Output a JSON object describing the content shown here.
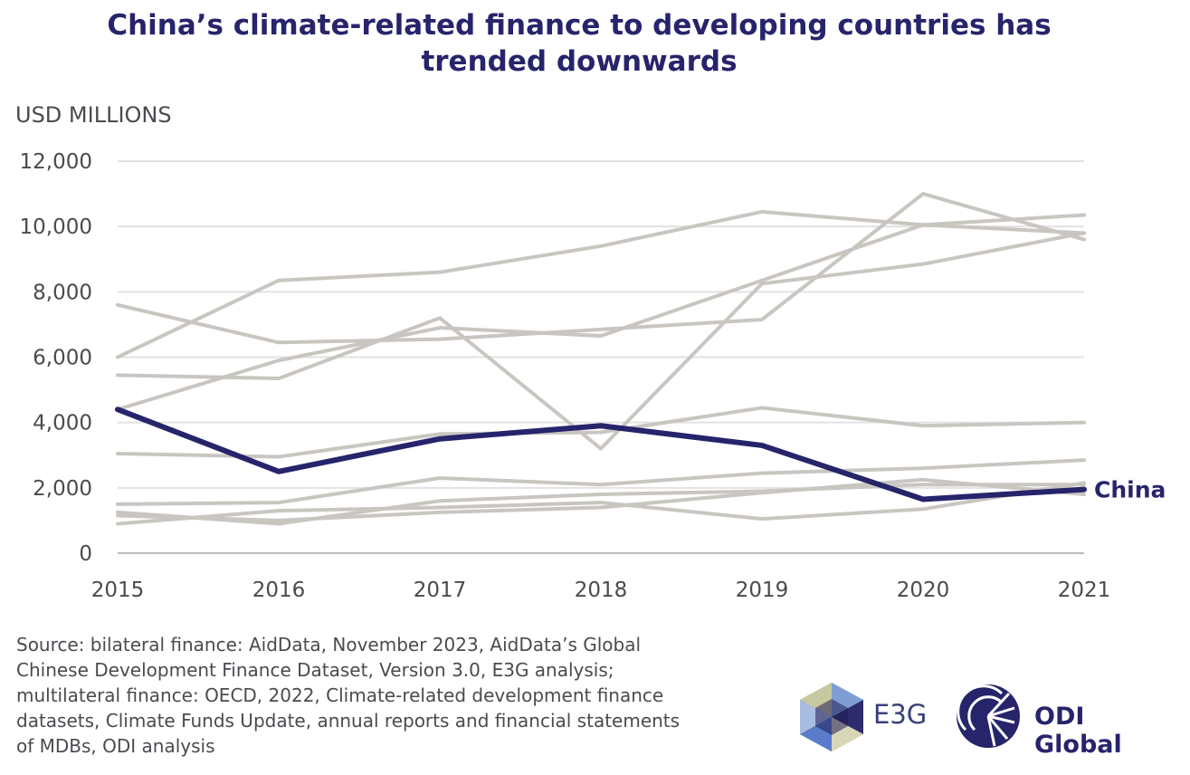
{
  "title_lines": [
    "China’s climate-related finance to developing countries has",
    "trended downwards"
  ],
  "unit_label": "USD MILLIONS",
  "source_lines": [
    "Source: bilateral finance: AidData, November 2023, AidData’s Global",
    "Chinese Development Finance Dataset, Version 3.0, E3G analysis;",
    "multilateral finance: OECD, 2022, Climate-related development finance",
    "datasets, Climate Funds Update, annual reports and financial statements",
    "of MDBs, ODI analysis"
  ],
  "logos": {
    "e3g": "E3G",
    "odi": "ODI Global"
  },
  "colors": {
    "highlight": "#26246b",
    "others": "#c9c5c0",
    "grid": "#e2e2e2",
    "text": "#4a4a50"
  },
  "chart_data": {
    "type": "line",
    "x": [
      2015,
      2016,
      2017,
      2018,
      2019,
      2020,
      2021
    ],
    "ylim": [
      0,
      12000
    ],
    "yticks": [
      0,
      2000,
      4000,
      6000,
      8000,
      10000,
      12000
    ],
    "ytick_labels": [
      "0",
      "2,000",
      "4,000",
      "6,000",
      "8,000",
      "10,000",
      "12,000"
    ],
    "ylabel": "USD MILLIONS",
    "grid": true,
    "series": [
      {
        "name": "China",
        "highlight": true,
        "values": [
          4400,
          2500,
          3500,
          3900,
          3300,
          1650,
          1950
        ]
      },
      {
        "highlight": false,
        "values": [
          6000,
          8350,
          8600,
          9400,
          10450,
          10050,
          9800
        ]
      },
      {
        "highlight": false,
        "values": [
          4400,
          5900,
          6900,
          6650,
          8350,
          10050,
          10350
        ]
      },
      {
        "highlight": false,
        "values": [
          7600,
          6450,
          6550,
          6850,
          7150,
          11000,
          9600
        ]
      },
      {
        "highlight": false,
        "values": [
          5450,
          5350,
          7200,
          3200,
          8250,
          8850,
          9800
        ]
      },
      {
        "highlight": false,
        "values": [
          3050,
          2950,
          3650,
          3700,
          4450,
          3900,
          4000
        ]
      },
      {
        "highlight": false,
        "values": [
          1500,
          1550,
          2300,
          2100,
          2450,
          2600,
          2850
        ]
      },
      {
        "highlight": false,
        "values": [
          1250,
          900,
          1600,
          1800,
          1900,
          2100,
          2100
        ]
      },
      {
        "highlight": false,
        "values": [
          900,
          1300,
          1400,
          1550,
          1050,
          1350,
          2150
        ]
      },
      {
        "highlight": false,
        "values": [
          1150,
          1000,
          1250,
          1400,
          1850,
          2250,
          1800
        ]
      }
    ]
  }
}
